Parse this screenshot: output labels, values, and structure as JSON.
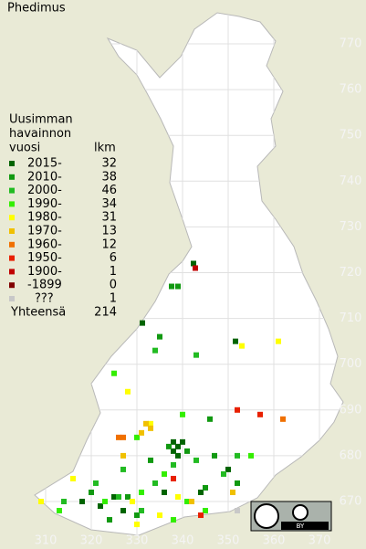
{
  "title": "Phedimus",
  "legend": {
    "header": [
      "Uusimman",
      "havainnon",
      "vuosi"
    ],
    "count_header": "lkm",
    "items": [
      {
        "label": "2015-",
        "color": "#006400",
        "count": 32
      },
      {
        "label": "2010-",
        "color": "#119911",
        "count": 38
      },
      {
        "label": "2000-",
        "color": "#22bb22",
        "count": 46
      },
      {
        "label": "1990-",
        "color": "#33ee00",
        "count": 34
      },
      {
        "label": "1980-",
        "color": "#ffff00",
        "count": 31
      },
      {
        "label": "1970-",
        "color": "#f0c000",
        "count": 13
      },
      {
        "label": "1960-",
        "color": "#f07000",
        "count": 12
      },
      {
        "label": "1950-",
        "color": "#e82000",
        "count": 6
      },
      {
        "label": "1900-",
        "color": "#c00000",
        "count": 1
      },
      {
        "label": "-1899",
        "color": "#800000",
        "count": 0
      },
      {
        "label": "???",
        "color": "#c8c8c8",
        "count": 1
      }
    ],
    "total_label": "Yhteensä",
    "total": 214
  },
  "xticks": [
    310,
    320,
    330,
    340,
    350,
    360,
    370
  ],
  "yticks": [
    770,
    760,
    750,
    740,
    730,
    720,
    710,
    700,
    690,
    680,
    670
  ],
  "xlim": [
    310,
    370
  ],
  "ylim": [
    670,
    770
  ],
  "squares": [
    [
      342.4,
      722,
      0
    ],
    [
      331.2,
      709,
      0
    ],
    [
      351.6,
      705,
      0
    ],
    [
      338,
      683,
      0
    ],
    [
      339,
      682,
      0
    ],
    [
      340,
      683,
      0
    ],
    [
      338,
      681,
      0
    ],
    [
      339,
      680,
      0
    ],
    [
      336,
      672,
      0
    ],
    [
      325,
      671,
      0
    ],
    [
      322,
      669,
      0
    ],
    [
      327,
      668,
      0
    ],
    [
      344,
      672,
      0
    ],
    [
      350,
      677,
      0
    ],
    [
      318,
      670,
      0
    ],
    [
      337.6,
      717,
      1
    ],
    [
      339,
      717,
      1
    ],
    [
      335,
      706,
      1
    ],
    [
      337,
      682,
      1
    ],
    [
      341,
      681,
      1
    ],
    [
      333,
      679,
      1
    ],
    [
      328,
      671,
      1
    ],
    [
      320,
      672,
      1
    ],
    [
      347,
      680,
      1
    ],
    [
      346,
      688,
      1
    ],
    [
      345,
      673,
      1
    ],
    [
      330,
      667,
      1
    ],
    [
      324,
      666,
      1
    ],
    [
      352,
      674,
      1
    ],
    [
      334,
      703,
      2
    ],
    [
      343,
      702,
      2
    ],
    [
      338,
      678,
      2
    ],
    [
      334,
      674,
      2
    ],
    [
      321,
      674,
      2
    ],
    [
      326,
      671,
      2
    ],
    [
      331,
      668,
      2
    ],
    [
      343,
      679,
      2
    ],
    [
      349,
      676,
      2
    ],
    [
      352,
      680,
      2
    ],
    [
      327,
      677,
      2
    ],
    [
      314,
      670,
      2
    ],
    [
      325,
      698,
      3
    ],
    [
      340,
      689,
      3
    ],
    [
      330,
      684,
      3
    ],
    [
      336,
      676,
      3
    ],
    [
      331,
      672,
      3
    ],
    [
      323,
      670,
      3
    ],
    [
      341,
      670,
      3
    ],
    [
      345,
      668,
      3
    ],
    [
      355,
      680,
      3
    ],
    [
      313,
      668,
      3
    ],
    [
      338,
      666,
      3
    ],
    [
      353,
      704,
      4
    ],
    [
      361,
      705,
      4
    ],
    [
      328,
      694,
      4
    ],
    [
      333,
      687,
      4
    ],
    [
      339,
      671,
      4
    ],
    [
      335,
      667,
      4
    ],
    [
      330,
      665,
      4
    ],
    [
      316,
      675,
      4
    ],
    [
      309,
      670,
      4
    ],
    [
      329,
      670,
      4
    ],
    [
      332,
      687,
      5
    ],
    [
      333,
      686,
      5
    ],
    [
      331,
      685,
      5
    ],
    [
      327,
      680,
      5
    ],
    [
      351,
      672,
      5
    ],
    [
      342,
      670,
      5
    ],
    [
      326,
      684,
      6
    ],
    [
      327,
      684,
      6
    ],
    [
      362,
      688,
      6
    ],
    [
      352,
      690,
      7
    ],
    [
      357,
      689,
      7
    ],
    [
      338,
      675,
      7
    ],
    [
      344,
      667,
      7
    ],
    [
      342.8,
      721,
      8
    ],
    [
      352,
      668,
      10
    ]
  ],
  "badge": "BY"
}
